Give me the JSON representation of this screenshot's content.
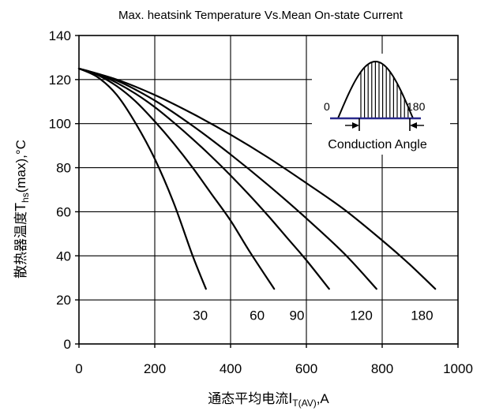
{
  "chart_data": {
    "type": "line",
    "title": "Max. heatsink Temperature Vs.Mean On-state Current",
    "xlabel": {
      "prefix": "通态平均电流",
      "symbol": "I",
      "subscript": "T(AV)",
      "suffix": ",A"
    },
    "ylabel": {
      "prefix": "散热器温度",
      "symbol": "T",
      "subscript": "hs",
      "suffix": "(max),°C"
    },
    "xlim": [
      0,
      1000
    ],
    "ylim": [
      0,
      140
    ],
    "xticks": [
      "0",
      "200",
      "400",
      "600",
      "800",
      "1000"
    ],
    "yticks": [
      "0",
      "20",
      "40",
      "60",
      "80",
      "100",
      "120",
      "140"
    ],
    "grid": true,
    "series": [
      {
        "name": "30",
        "label_at": [
          320,
          13
        ],
        "points": [
          [
            0,
            125
          ],
          [
            50,
            121
          ],
          [
            100,
            113
          ],
          [
            150,
            100
          ],
          [
            200,
            84
          ],
          [
            250,
            64
          ],
          [
            300,
            40
          ],
          [
            335,
            25
          ]
        ]
      },
      {
        "name": "60",
        "label_at": [
          470,
          13
        ],
        "points": [
          [
            0,
            125
          ],
          [
            50,
            122
          ],
          [
            100,
            117
          ],
          [
            150,
            110
          ],
          [
            200,
            101
          ],
          [
            250,
            91
          ],
          [
            300,
            80
          ],
          [
            350,
            68
          ],
          [
            400,
            56
          ],
          [
            450,
            42
          ],
          [
            515,
            25
          ]
        ]
      },
      {
        "name": "90",
        "label_at": [
          575,
          13
        ],
        "points": [
          [
            0,
            125
          ],
          [
            50,
            122.5
          ],
          [
            100,
            118.5
          ],
          [
            150,
            113.5
          ],
          [
            200,
            107.5
          ],
          [
            250,
            100.5
          ],
          [
            300,
            93
          ],
          [
            350,
            85
          ],
          [
            400,
            76.5
          ],
          [
            450,
            67.5
          ],
          [
            500,
            58
          ],
          [
            550,
            48
          ],
          [
            600,
            38
          ],
          [
            660,
            25
          ]
        ]
      },
      {
        "name": "120",
        "label_at": [
          745,
          13
        ],
        "points": [
          [
            0,
            125
          ],
          [
            100,
            119.5
          ],
          [
            200,
            110.5
          ],
          [
            300,
            99
          ],
          [
            400,
            86
          ],
          [
            500,
            72
          ],
          [
            600,
            57
          ],
          [
            700,
            41
          ],
          [
            785,
            25
          ]
        ]
      },
      {
        "name": "180",
        "label_at": [
          905,
          13
        ],
        "points": [
          [
            0,
            125
          ],
          [
            100,
            120
          ],
          [
            200,
            113
          ],
          [
            300,
            104.5
          ],
          [
            400,
            95
          ],
          [
            500,
            84.5
          ],
          [
            600,
            73
          ],
          [
            700,
            61
          ],
          [
            800,
            47
          ],
          [
            870,
            36.5
          ],
          [
            940,
            25
          ]
        ]
      }
    ],
    "inset": {
      "start_label": "0",
      "end_label": "180",
      "caption": "Conduction Angle"
    }
  }
}
